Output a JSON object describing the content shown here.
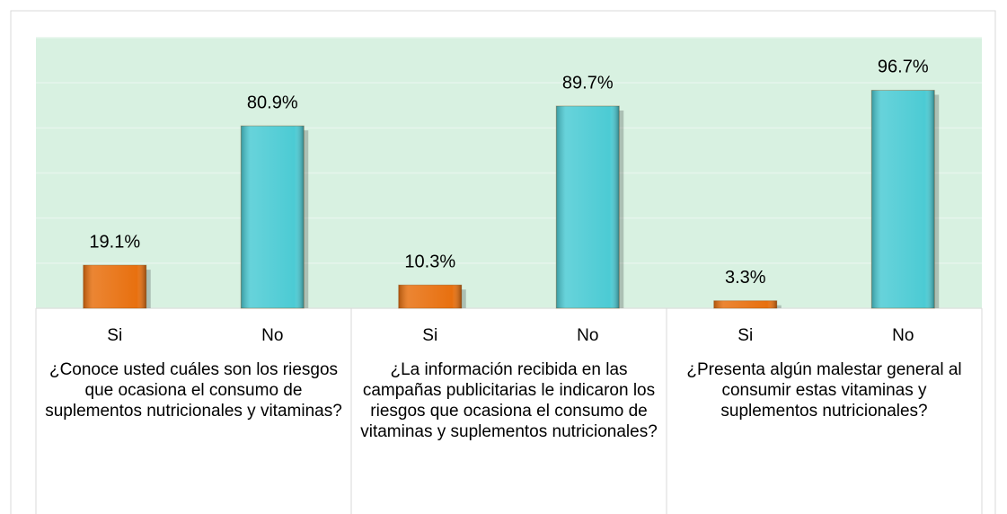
{
  "chart_data": {
    "type": "bar",
    "categories": [
      "Si",
      "No",
      "Si",
      "No",
      "Si",
      "No"
    ],
    "groups": [
      "¿Conoce usted cuáles son los riesgos que ocasiona el consumo de suplementos nutricionales y vitaminas?",
      "¿La información recibida en las campañas publicitarias le indicaron los riesgos que ocasiona el consumo de vitaminas y suplementos nutricionales?",
      "¿Presenta algún malestar general al consumir estas vitaminas y suplementos nutricionales?"
    ],
    "values": [
      19.1,
      80.9,
      10.3,
      89.7,
      3.3,
      96.7
    ],
    "value_labels": [
      "19.1%",
      "80.9%",
      "10.3%",
      "89.7%",
      "3.3%",
      "96.7%"
    ],
    "colors": [
      "#e8700f",
      "#4ccbd4",
      "#e8700f",
      "#4ccbd4",
      "#e8700f",
      "#4ccbd4"
    ],
    "ylim": [
      0,
      120
    ],
    "yticks": [
      0,
      20,
      40,
      60,
      80,
      100,
      120
    ],
    "grid": true
  }
}
